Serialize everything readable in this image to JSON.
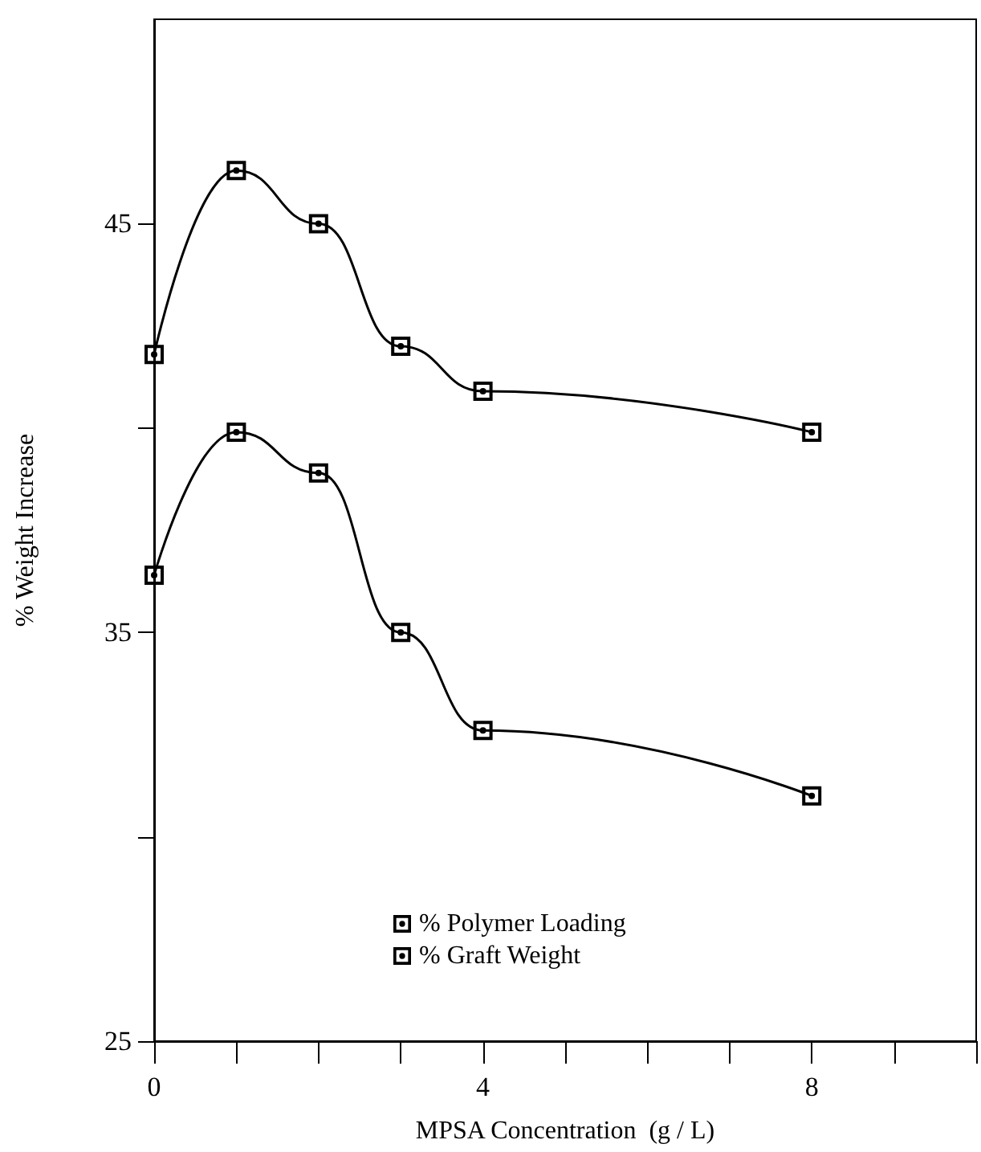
{
  "chart_data": {
    "type": "line",
    "xlabel": "MPSA Concentration  (g / L)",
    "ylabel": "% Weight Increase",
    "x": [
      0,
      1,
      2,
      3,
      4,
      8
    ],
    "series": [
      {
        "name": "% Polymer Loading",
        "color": "#000000",
        "values": [
          41.8,
          46.3,
          45.0,
          42.0,
          40.9,
          39.9
        ]
      },
      {
        "name": "% Graft Weight",
        "color": "#000000",
        "values": [
          36.4,
          39.9,
          38.9,
          35.0,
          32.6,
          31.0
        ]
      }
    ],
    "xlim": [
      0,
      10
    ],
    "xticks": [
      0,
      {
        "value": 1,
        "label": null
      },
      {
        "value": 2,
        "label": null
      },
      {
        "value": 3,
        "label": null
      },
      4,
      {
        "value": 5,
        "label": null
      },
      {
        "value": 6,
        "label": null
      },
      {
        "value": 7,
        "label": null
      },
      8,
      {
        "value": 9,
        "label": null
      },
      {
        "value": 10,
        "label": null
      }
    ],
    "ylim": [
      25,
      50
    ],
    "yticks": [
      25,
      {
        "value": 30,
        "label": null
      },
      35,
      {
        "value": 40,
        "label": null
      },
      45
    ],
    "grid": false,
    "legend": "bottom",
    "marker": "square",
    "line_style": "solid"
  }
}
